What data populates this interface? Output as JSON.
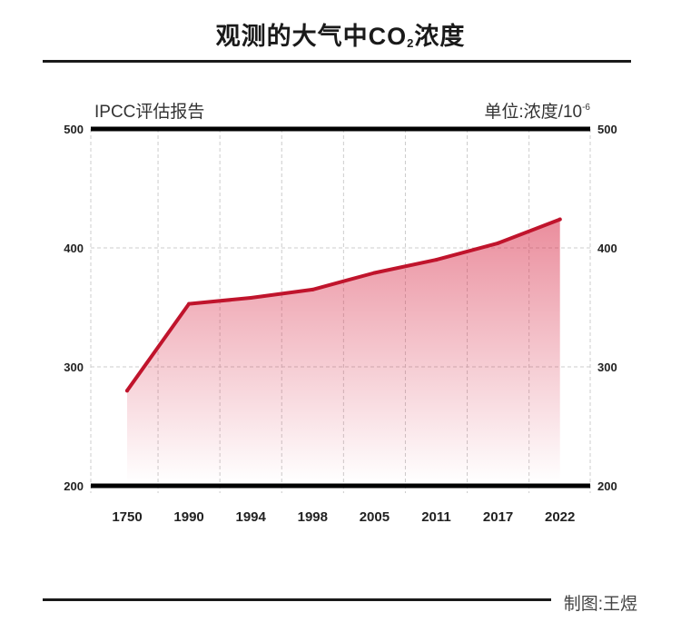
{
  "header": {
    "title_main": "观测的大气中CO",
    "title_sub": "2",
    "title_end": "浓度"
  },
  "source_label": "IPCC评估报告",
  "unit": {
    "text": "单位:浓度/10",
    "exponent": "-6"
  },
  "credit": "制图:王煜",
  "colors": {
    "line": "#c0142c",
    "fill": "#d9304c",
    "axis": "#000000",
    "grid": "#cccccc"
  },
  "chart_data": {
    "type": "area",
    "title": "观测的大气中CO₂浓度",
    "xlabel": "",
    "ylabel": "",
    "categories": [
      "1750",
      "1990",
      "1994",
      "1998",
      "2005",
      "2011",
      "2017",
      "2022"
    ],
    "series": [
      {
        "values": [
          280,
          353,
          358,
          365,
          379,
          390,
          404,
          424
        ]
      }
    ],
    "ylim": [
      200,
      500
    ],
    "yticks": [
      "500",
      "400",
      "300",
      "200"
    ],
    "grid": true,
    "legend": "none"
  }
}
